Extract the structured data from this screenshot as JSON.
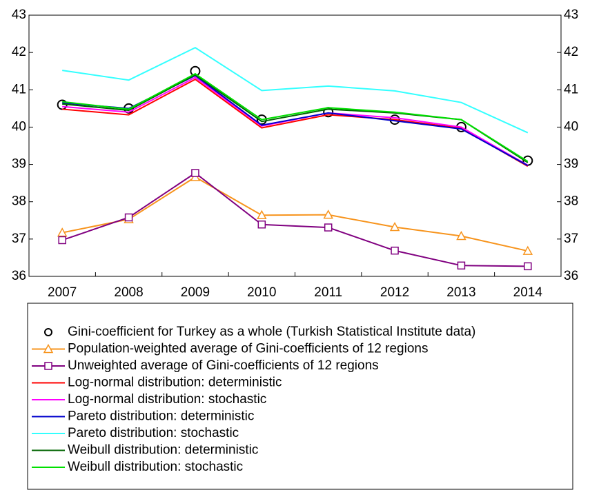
{
  "chart_data": {
    "type": "line",
    "categories": [
      "2007",
      "2008",
      "2009",
      "2010",
      "2011",
      "2012",
      "2013",
      "2014"
    ],
    "ylim": [
      36,
      43
    ],
    "yticks": [
      36,
      37,
      38,
      39,
      40,
      41,
      42,
      43
    ],
    "y2lim": [
      36,
      43
    ],
    "y2ticks": [
      36,
      37,
      38,
      39,
      40,
      41,
      42,
      43
    ],
    "grid": false,
    "series": [
      {
        "name": "Gini-coefficient for Turkey as a whole (Turkish Statistical Institute data)",
        "color": "#000000",
        "marker": "circle",
        "linestyle": "none",
        "values": [
          40.6,
          40.5,
          41.5,
          40.2,
          40.4,
          40.2,
          40.0,
          39.1
        ]
      },
      {
        "name": "Population-weighted average of Gini-coefficients of 12 regions",
        "color": "#f7941d",
        "marker": "triangle",
        "linestyle": "solid",
        "values": [
          37.17,
          37.53,
          38.66,
          37.64,
          37.65,
          37.32,
          37.08,
          36.68
        ]
      },
      {
        "name": "Unweighted average of Gini-coefficients of 12 regions",
        "color": "#800080",
        "marker": "square",
        "linestyle": "solid",
        "values": [
          36.97,
          37.58,
          38.77,
          37.39,
          37.31,
          36.69,
          36.29,
          36.27
        ]
      },
      {
        "name": "Log-normal distribution: deterministic",
        "color": "#ff0000",
        "marker": "none",
        "linestyle": "solid",
        "values": [
          40.48,
          40.33,
          41.28,
          39.98,
          40.33,
          40.2,
          39.97,
          38.95
        ]
      },
      {
        "name": "Log-normal distribution: stochastic",
        "color": "#ff00ff",
        "marker": "none",
        "linestyle": "solid",
        "values": [
          40.55,
          40.4,
          41.33,
          40.03,
          40.38,
          40.25,
          40.0,
          38.98
        ]
      },
      {
        "name": "Pareto distribution: deterministic",
        "color": "#0000cc",
        "marker": "none",
        "linestyle": "solid",
        "values": [
          40.65,
          40.5,
          41.38,
          40.05,
          40.38,
          40.17,
          39.95,
          38.97
        ]
      },
      {
        "name": "Pareto distribution: stochastic",
        "color": "#33ffff",
        "marker": "none",
        "linestyle": "solid",
        "values": [
          41.52,
          41.26,
          42.13,
          40.98,
          41.1,
          40.97,
          40.66,
          39.85
        ]
      },
      {
        "name": "Weibull distribution: deterministic",
        "color": "#006400",
        "marker": "none",
        "linestyle": "solid",
        "values": [
          40.62,
          40.45,
          41.4,
          40.15,
          40.48,
          40.38,
          40.2,
          39.05
        ]
      },
      {
        "name": "Weibull distribution: stochastic",
        "color": "#00e000",
        "marker": "none",
        "linestyle": "solid",
        "values": [
          40.68,
          40.48,
          41.43,
          40.2,
          40.52,
          40.4,
          40.2,
          39.08
        ]
      }
    ]
  }
}
